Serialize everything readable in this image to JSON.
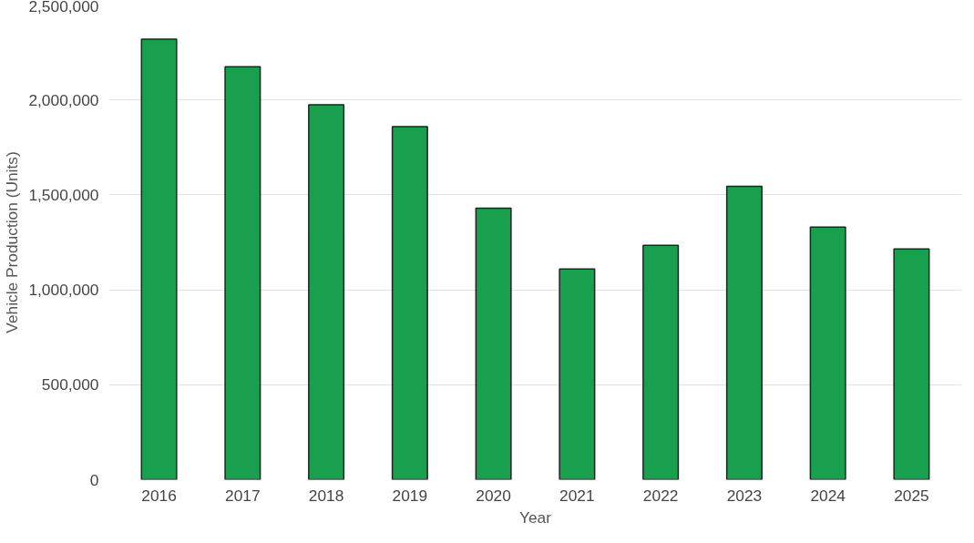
{
  "chart_data": {
    "type": "bar",
    "xlabel": "Year",
    "ylabel": "Vehicle Production (Units)",
    "categories": [
      "2016",
      "2017",
      "2018",
      "2019",
      "2020",
      "2021",
      "2022",
      "2023",
      "2024",
      "2025"
    ],
    "series": [
      {
        "color": "#18a04f",
        "values": [
          2320000,
          2175000,
          1975000,
          1860000,
          1430000,
          1110000,
          1235000,
          1545000,
          1330000,
          1215000
        ]
      }
    ],
    "ylim": [
      0,
      2500000
    ],
    "yticks": [
      {
        "value": 0,
        "label": "0"
      },
      {
        "value": 500000,
        "label": "500,000"
      },
      {
        "value": 1000000,
        "label": "1,000,000"
      },
      {
        "value": 1500000,
        "label": "1,500,000"
      },
      {
        "value": 2000000,
        "label": "2,000,000"
      },
      {
        "value": 2500000,
        "label": "2,500,000"
      }
    ],
    "grid": "y"
  }
}
